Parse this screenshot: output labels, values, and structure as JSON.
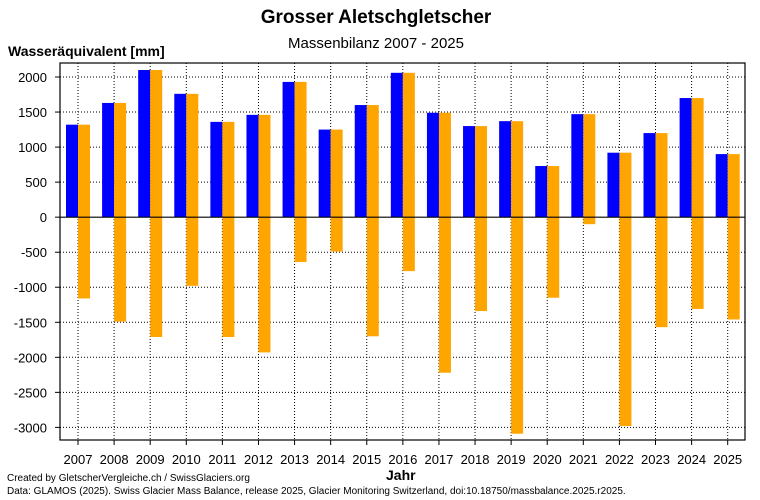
{
  "chart_data": {
    "type": "bar",
    "title": "Grosser Aletschgletscher",
    "subtitle": "Massenbilanz 2007 - 2025",
    "ylabel": "Wasseräquivalent [mm]",
    "xlabel": "Jahr",
    "ylim": [
      -3180,
      2200
    ],
    "yticks": [
      2000,
      1500,
      1000,
      500,
      0,
      -500,
      -1000,
      -1500,
      -2000,
      -2500,
      -3000
    ],
    "grid": true,
    "categories": [
      "2007",
      "2008",
      "2009",
      "2010",
      "2011",
      "2012",
      "2013",
      "2014",
      "2015",
      "2016",
      "2017",
      "2018",
      "2019",
      "2020",
      "2021",
      "2022",
      "2023",
      "2024",
      "2025"
    ],
    "series": [
      {
        "key": "winter",
        "color": "#0000ff",
        "values": [
          1320,
          1630,
          2100,
          1760,
          1360,
          1460,
          1930,
          1250,
          1600,
          2060,
          1490,
          1300,
          1370,
          730,
          1470,
          920,
          1200,
          1700,
          900
        ]
      },
      {
        "key": "summer_to_annual",
        "color": "#ffa500",
        "from": [
          1320,
          1630,
          2100,
          1760,
          1360,
          1460,
          1930,
          1250,
          1600,
          2060,
          1490,
          1300,
          1370,
          730,
          1470,
          920,
          1200,
          1700,
          900
        ],
        "values": [
          -1160,
          -1490,
          -1710,
          -980,
          -1710,
          -1930,
          -640,
          -490,
          -1700,
          -770,
          -2220,
          -1340,
          -3090,
          -1150,
          -100,
          -2980,
          -1570,
          -1310,
          -1460
        ]
      }
    ]
  },
  "footer": {
    "credit": "Created by GletscherVergleiche.ch / SwissGlaciers.org",
    "source": "Data: GLAMOS (2025). Swiss Glacier Mass Balance, release 2025, Glacier Monitoring Switzerland, doi:10.18750/massbalance.2025.r2025."
  }
}
